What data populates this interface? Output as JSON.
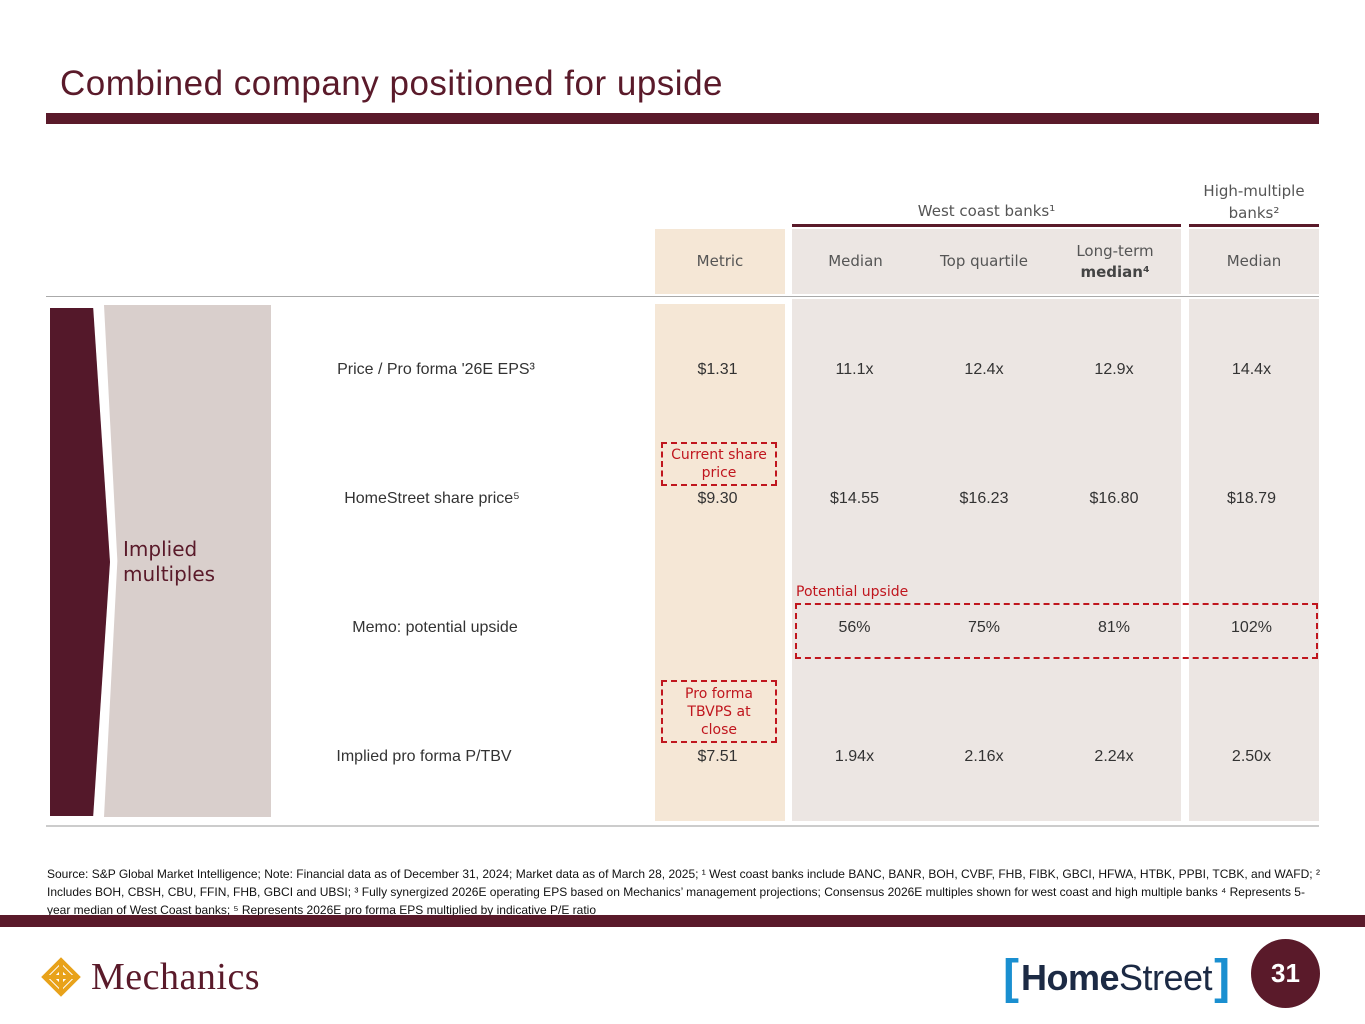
{
  "title": "Combined company positioned for upside",
  "groups": {
    "west_coast": "West coast banks¹",
    "high_multiple": "High-multiple banks²"
  },
  "headers": {
    "metric": "Metric",
    "median": "Median",
    "top_quartile": "Top quartile",
    "long_term_line1": "Long-term",
    "long_term_line2": "median⁴",
    "hm_median": "Median"
  },
  "side_label": "Implied multiples",
  "rows": [
    {
      "label": "Price / Pro forma '26E EPS³",
      "metric": "$1.31",
      "median": "11.1x",
      "top_quartile": "12.4x",
      "long_term": "12.9x",
      "hm_median": "14.4x"
    },
    {
      "label": "HomeStreet share price⁵",
      "metric": "$9.30",
      "median": "$14.55",
      "top_quartile": "$16.23",
      "long_term": "$16.80",
      "hm_median": "$18.79"
    },
    {
      "label": "Memo: potential upside",
      "metric": "",
      "median": "56%",
      "top_quartile": "75%",
      "long_term": "81%",
      "hm_median": "102%"
    },
    {
      "label": "Implied pro forma P/TBV",
      "metric": "$7.51",
      "median": "1.94x",
      "top_quartile": "2.16x",
      "long_term": "2.24x",
      "hm_median": "2.50x"
    }
  ],
  "notes": {
    "current_share_price": "Current share price",
    "potential_upside": "Potential upside",
    "pro_forma_tbvps": "Pro forma TBVPS at close"
  },
  "footnote": "Source: S&P Global Market Intelligence; Note: Financial data as of December 31, 2024; Market data as of March 28, 2025; ¹ West coast banks include BANC, BANR, BOH, CVBF, FHB, FIBK, GBCI, HFWA, HTBK, PPBI, TCBK, and WAFD; ² Includes BOH, CBSH, CBU, FFIN, FHB, GBCI and UBSI; ³ Fully synergized 2026E operating EPS based on Mechanics’ management projections; Consensus 2026E multiples shown for west coast and high multiple banks ⁴ Represents 5-year median of West Coast banks; ⁵ Represents 2026E pro forma EPS multiplied by indicative P/E ratio",
  "footer": {
    "left_logo": "Mechanics",
    "right_logo_bold": "Home",
    "right_logo_regular": "Street",
    "page_number": "31"
  },
  "colors": {
    "brand": "#5a1a2a",
    "highlight": "#c0161e",
    "metric_column": "#f5e7d6",
    "peer_columns": "#ece6e3",
    "homestreet_blue": "#1a8fd0"
  }
}
